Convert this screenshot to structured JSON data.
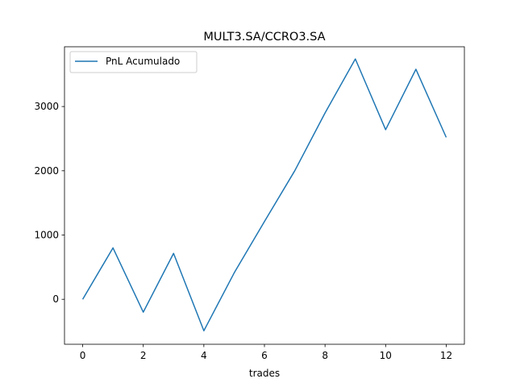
{
  "chart_data": {
    "type": "line",
    "title": "MULT3.SA/CCRO3.SA",
    "xlabel": "trades",
    "ylabel": "",
    "x": [
      0,
      1,
      2,
      3,
      4,
      5,
      6,
      7,
      8,
      9,
      10,
      11,
      12
    ],
    "series": [
      {
        "name": "PnL Acumulado",
        "color": "#1f77b4",
        "values": [
          0,
          800,
          -200,
          715,
          -490,
          410,
          1210,
          2000,
          2900,
          3740,
          2640,
          3580,
          2520
        ]
      }
    ],
    "xlim": [
      -0.6,
      12.6
    ],
    "ylim": [
      -700,
      3930
    ],
    "xticks": [
      0,
      2,
      4,
      6,
      8,
      10,
      12
    ],
    "yticks": [
      0,
      1000,
      2000,
      3000
    ],
    "xtick_labels": [
      "0",
      "2",
      "4",
      "6",
      "8",
      "10",
      "12"
    ],
    "ytick_labels": [
      "0",
      "1000",
      "2000",
      "3000"
    ],
    "grid": false,
    "legend_position": "upper-left"
  }
}
